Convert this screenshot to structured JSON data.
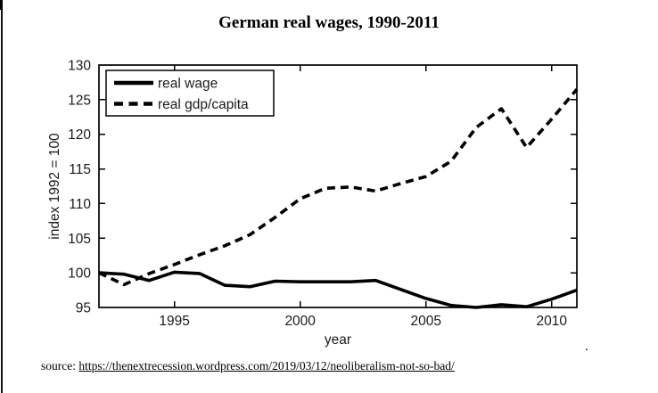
{
  "page": {
    "title": "German real wages, 1990-2011",
    "source_prefix": "source: ",
    "source_link": "https://thenextrecession.wordpress.com/2019/03/12/neoliberalism-not-so-bad/",
    "stray_dot": "."
  },
  "chart_data": {
    "type": "line",
    "title": "German real wages, 1990-2011",
    "xlabel": "year",
    "ylabel": "index 1992 = 100",
    "xlim": [
      1992,
      2011
    ],
    "ylim": [
      95,
      130
    ],
    "xticks": [
      1995,
      2000,
      2005,
      2010
    ],
    "yticks": [
      95,
      100,
      105,
      110,
      115,
      120,
      125,
      130
    ],
    "grid": false,
    "legend_position": "top-left-inside",
    "line_color": "#000000",
    "x": [
      1992,
      1993,
      1994,
      1995,
      1996,
      1997,
      1998,
      1999,
      2000,
      2001,
      2002,
      2003,
      2004,
      2005,
      2006,
      2007,
      2008,
      2009,
      2010,
      2011
    ],
    "series": [
      {
        "name": "real wage",
        "style": "solid",
        "color": "#000000",
        "values": [
          100,
          99.8,
          98.9,
          100.1,
          99.9,
          98.2,
          98.0,
          98.8,
          98.7,
          98.7,
          98.7,
          98.9,
          97.6,
          96.3,
          95.3,
          95.0,
          95.4,
          95.1,
          96.2,
          97.5
        ]
      },
      {
        "name": "real gdp/capita",
        "style": "dashed",
        "color": "#000000",
        "values": [
          100,
          98.3,
          99.9,
          101.2,
          102.6,
          103.9,
          105.5,
          108.0,
          110.7,
          112.2,
          112.4,
          111.8,
          112.9,
          113.9,
          116.1,
          121.0,
          123.7,
          118.1,
          122.2,
          126.5
        ]
      }
    ]
  }
}
